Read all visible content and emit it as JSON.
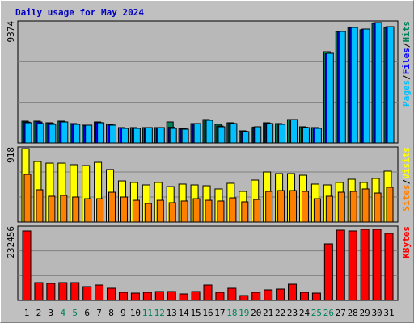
{
  "chart_data": [
    {
      "type": "bar",
      "title": "Daily usage for May 2024",
      "title_color": "#0000c0",
      "ylim": [
        0,
        9374
      ],
      "yticks": [
        9374
      ],
      "legend_separator": "/",
      "series": [
        {
          "name": "Hits",
          "color": "#00805c",
          "values": [
            1676,
            1676,
            1552,
            1676,
            1490,
            1366,
            1614,
            1428,
            1180,
            1180,
            1180,
            1180,
            1614,
            1118,
            1490,
            1800,
            1428,
            1552,
            931,
            1180,
            1552,
            1490,
            1800,
            1242,
            1180,
            7015,
            8567,
            8877,
            8691,
            9188,
            8877
          ]
        },
        {
          "name": "Files",
          "color": "#0000ff",
          "values": [
            1600,
            1610,
            1500,
            1620,
            1440,
            1320,
            1560,
            1380,
            1140,
            1140,
            1140,
            1140,
            1200,
            1080,
            1440,
            1740,
            1300,
            1500,
            900,
            1220,
            1500,
            1440,
            1760,
            1200,
            1140,
            6860,
            8560,
            8870,
            8740,
            9250,
            8930
          ]
        },
        {
          "name": "Pages",
          "color": "#00c0ff",
          "values": [
            1552,
            1490,
            1428,
            1614,
            1428,
            1366,
            1552,
            1366,
            1118,
            1118,
            1180,
            1180,
            1118,
            1056,
            1490,
            1738,
            1242,
            1490,
            869,
            1242,
            1490,
            1428,
            1800,
            1180,
            1118,
            6891,
            8567,
            8877,
            8753,
            9250,
            8939
          ]
        }
      ]
    },
    {
      "type": "bar",
      "ylim": [
        0,
        918
      ],
      "yticks": [
        918
      ],
      "legend_separator": "/",
      "series": [
        {
          "name": "Visits",
          "color": "#ffff00",
          "values": [
            898,
            740,
            720,
            720,
            701,
            691,
            730,
            642,
            503,
            484,
            454,
            484,
            434,
            464,
            454,
            444,
            405,
            474,
            375,
            513,
            612,
            592,
            592,
            572,
            464,
            454,
            484,
            523,
            484,
            533,
            622
          ]
        },
        {
          "name": "Sites",
          "color": "#ff8000",
          "values": [
            582,
            395,
            316,
            326,
            306,
            286,
            286,
            365,
            306,
            266,
            227,
            266,
            237,
            257,
            286,
            266,
            257,
            296,
            247,
            276,
            375,
            385,
            385,
            375,
            286,
            316,
            365,
            375,
            405,
            355,
            425
          ]
        }
      ]
    },
    {
      "type": "bar",
      "ylim": [
        0,
        232456
      ],
      "yticks": [
        232456
      ],
      "categories": [
        "1",
        "2",
        "3",
        "4",
        "5",
        "6",
        "7",
        "8",
        "9",
        "10",
        "11",
        "12",
        "13",
        "14",
        "15",
        "16",
        "17",
        "18",
        "19",
        "20",
        "21",
        "22",
        "23",
        "24",
        "25",
        "26",
        "27",
        "28",
        "29",
        "30",
        "31"
      ],
      "category_colors": [
        "#000000",
        "#000000",
        "#000000",
        "#00805c",
        "#00805c",
        "#000000",
        "#000000",
        "#000000",
        "#000000",
        "#000000",
        "#00805c",
        "#00805c",
        "#000000",
        "#000000",
        "#000000",
        "#000000",
        "#000000",
        "#00805c",
        "#00805c",
        "#000000",
        "#000000",
        "#000000",
        "#000000",
        "#000000",
        "#00805c",
        "#00805c",
        "#000000",
        "#000000",
        "#000000",
        "#000000",
        "#000000"
      ],
      "series": [
        {
          "name": "KBytes",
          "color": "#ff0000",
          "values": [
            217322,
            55594,
            53067,
            55594,
            55594,
            42959,
            48013,
            37905,
            25270,
            22743,
            25270,
            27797,
            27797,
            20216,
            27797,
            48013,
            25270,
            37905,
            15162,
            25270,
            32851,
            35378,
            50540,
            25270,
            22743,
            176890,
            219849,
            217322,
            222376,
            222376,
            209741
          ]
        }
      ]
    }
  ]
}
